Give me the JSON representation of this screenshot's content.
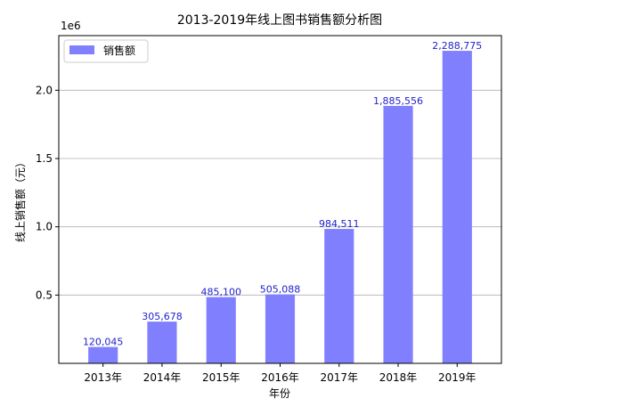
{
  "chart_data": {
    "type": "bar",
    "title": "2013-2019年线上图书销售额分析图",
    "xlabel": "年份",
    "ylabel": "线上销售额（元）",
    "offset_text": "1e6",
    "categories": [
      "2013年",
      "2014年",
      "2015年",
      "2016年",
      "2017年",
      "2018年",
      "2019年"
    ],
    "series": [
      {
        "name": "销售额",
        "values": [
          120045,
          305678,
          485100,
          505088,
          984511,
          1885556,
          2288775
        ],
        "value_labels": [
          "120,045",
          "305,678",
          "485,100",
          "505,088",
          "984,511",
          "1,885,556",
          "2,288,775"
        ],
        "color": "#8080ff"
      }
    ],
    "ylim": [
      0,
      2400000
    ],
    "yticks": [
      500000,
      1000000,
      1500000,
      2000000
    ],
    "ytick_labels": [
      "0.5",
      "1.0",
      "1.5",
      "2.0"
    ],
    "grid": "y",
    "legend": "top-left"
  }
}
